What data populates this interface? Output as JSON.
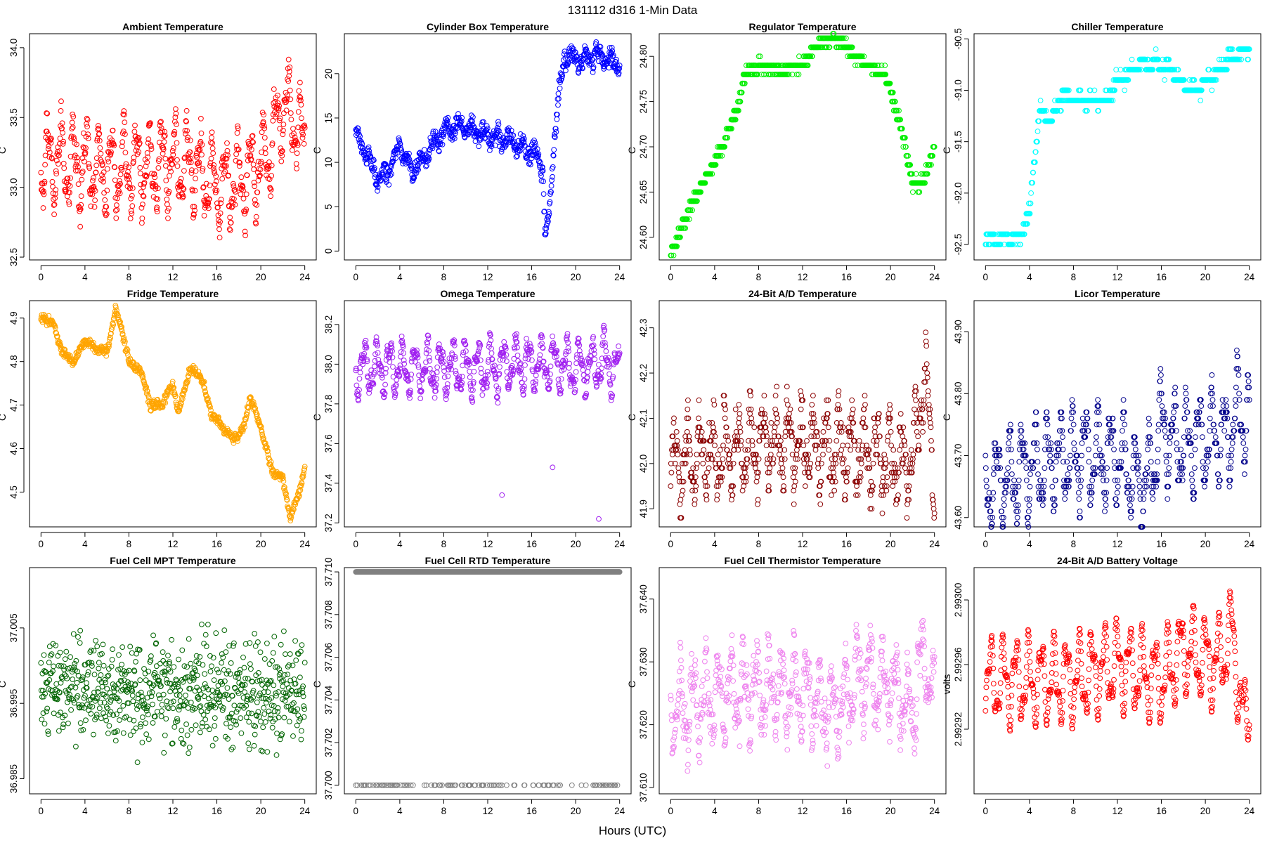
{
  "figure": {
    "title": "131112   d316   1-Min Data",
    "xlabel": "Hours (UTC)"
  },
  "chart_data": [
    {
      "type": "scatter",
      "title": "Ambient Temperature",
      "ylabel": "C",
      "color": "#ff0000",
      "xlim": [
        0,
        24
      ],
      "ylim": [
        32.48,
        34.1
      ],
      "xticks": [
        0,
        4,
        8,
        12,
        16,
        20,
        24
      ],
      "xtick_labels": [
        "0",
        "4",
        "8",
        "12",
        "16",
        "20",
        "24"
      ],
      "yticks": [
        32.5,
        33.0,
        33.5,
        34.0
      ],
      "ytick_labels": [
        "32.5",
        "33.0",
        "33.5",
        "34.0"
      ],
      "trend": [
        [
          0,
          33.18
        ],
        [
          2,
          33.18
        ],
        [
          4,
          33.15
        ],
        [
          6,
          33.12
        ],
        [
          8,
          33.15
        ],
        [
          10,
          33.15
        ],
        [
          12,
          33.2
        ],
        [
          14,
          33.15
        ],
        [
          16,
          33.0
        ],
        [
          18,
          33.05
        ],
        [
          20,
          33.15
        ],
        [
          21,
          33.3
        ],
        [
          22,
          33.6
        ],
        [
          23,
          33.5
        ],
        [
          24,
          33.3
        ]
      ],
      "amp": 0.32,
      "noise": 0.06
    },
    {
      "type": "scatter",
      "title": "Cylinder Box Temperature",
      "ylabel": "C",
      "color": "#0000ff",
      "xlim": [
        0,
        24
      ],
      "ylim": [
        -1,
        24.5
      ],
      "xticks": [
        0,
        4,
        8,
        12,
        16,
        20,
        24
      ],
      "xtick_labels": [
        "0",
        "4",
        "8",
        "12",
        "16",
        "20",
        "24"
      ],
      "yticks": [
        0,
        5,
        10,
        15,
        20
      ],
      "ytick_labels": [
        "0",
        "5",
        "10",
        "15",
        "20"
      ],
      "trend": [
        [
          0,
          13
        ],
        [
          1,
          11
        ],
        [
          2,
          8
        ],
        [
          3,
          9
        ],
        [
          4,
          12
        ],
        [
          5,
          9
        ],
        [
          6,
          10
        ],
        [
          7,
          12
        ],
        [
          8,
          13.5
        ],
        [
          9,
          14
        ],
        [
          10,
          14
        ],
        [
          11,
          13.5
        ],
        [
          12,
          13
        ],
        [
          14,
          12.5
        ],
        [
          16,
          11
        ],
        [
          17,
          10
        ],
        [
          17.2,
          1.5
        ],
        [
          17.6,
          4
        ],
        [
          18,
          12
        ],
        [
          18.5,
          18
        ],
        [
          19,
          22
        ],
        [
          20,
          21.5
        ],
        [
          22,
          22
        ],
        [
          24,
          21.2
        ]
      ],
      "amp": 0.9,
      "noise": 0.6
    },
    {
      "type": "scatter",
      "title": "Regulator Temperature",
      "ylabel": "C",
      "color": "#00ee00",
      "xlim": [
        0,
        24
      ],
      "ylim": [
        24.575,
        24.825
      ],
      "xticks": [
        0,
        4,
        8,
        12,
        16,
        20,
        24
      ],
      "xtick_labels": [
        "0",
        "4",
        "8",
        "12",
        "16",
        "20",
        "24"
      ],
      "yticks": [
        24.6,
        24.65,
        24.7,
        24.75,
        24.8
      ],
      "ytick_labels": [
        "24.60",
        "24.65",
        "24.70",
        "24.75",
        "24.80"
      ],
      "trend": [
        [
          0,
          24.58
        ],
        [
          1,
          24.61
        ],
        [
          2,
          24.64
        ],
        [
          3,
          24.66
        ],
        [
          4,
          24.68
        ],
        [
          5,
          24.71
        ],
        [
          6,
          24.74
        ],
        [
          6.8,
          24.78
        ],
        [
          8,
          24.79
        ],
        [
          10,
          24.785
        ],
        [
          12,
          24.79
        ],
        [
          13.5,
          24.815
        ],
        [
          15,
          24.82
        ],
        [
          16,
          24.81
        ],
        [
          18,
          24.79
        ],
        [
          19.5,
          24.78
        ],
        [
          20,
          24.76
        ],
        [
          21,
          24.72
        ],
        [
          22,
          24.66
        ],
        [
          23,
          24.66
        ],
        [
          24,
          24.7
        ]
      ],
      "amp": 0.0,
      "noise": 0.004,
      "step": 0.01
    },
    {
      "type": "scatter",
      "title": "Chiller Temperature",
      "ylabel": "C",
      "color": "#00ffff",
      "xlim": [
        0,
        24
      ],
      "ylim": [
        -92.65,
        -90.45
      ],
      "xticks": [
        0,
        4,
        8,
        12,
        16,
        20,
        24
      ],
      "xtick_labels": [
        "0",
        "4",
        "8",
        "12",
        "16",
        "20",
        "24"
      ],
      "yticks": [
        -92.5,
        -92.0,
        -91.5,
        -91.0,
        -90.5
      ],
      "ytick_labels": [
        "-92.5",
        "-92.0",
        "-91.5",
        "-91.0",
        "-90.5"
      ],
      "trend": [
        [
          0,
          -92.45
        ],
        [
          2,
          -92.45
        ],
        [
          3,
          -92.45
        ],
        [
          4,
          -92.2
        ],
        [
          4.5,
          -91.6
        ],
        [
          5,
          -91.2
        ],
        [
          6,
          -91.3
        ],
        [
          7,
          -91.05
        ],
        [
          9,
          -91.1
        ],
        [
          11,
          -91.1
        ],
        [
          12,
          -90.9
        ],
        [
          13,
          -90.85
        ],
        [
          14,
          -90.75
        ],
        [
          16,
          -90.75
        ],
        [
          17,
          -90.8
        ],
        [
          18,
          -90.95
        ],
        [
          19,
          -91.0
        ],
        [
          20,
          -90.9
        ],
        [
          21,
          -90.85
        ],
        [
          22,
          -90.7
        ],
        [
          24,
          -90.6
        ]
      ],
      "amp": 0.05,
      "noise": 0.03,
      "step": 0.1
    },
    {
      "type": "scatter",
      "title": "Fridge Temperature",
      "ylabel": "C",
      "color": "#ffa500",
      "xlim": [
        0,
        24
      ],
      "ylim": [
        4.42,
        4.94
      ],
      "xticks": [
        0,
        4,
        8,
        12,
        16,
        20,
        24
      ],
      "xtick_labels": [
        "0",
        "4",
        "8",
        "12",
        "16",
        "20",
        "24"
      ],
      "yticks": [
        4.5,
        4.6,
        4.7,
        4.8,
        4.9
      ],
      "ytick_labels": [
        "4.5",
        "4.6",
        "4.7",
        "4.8",
        "4.9"
      ],
      "trend": [
        [
          0,
          4.9
        ],
        [
          1,
          4.89
        ],
        [
          2,
          4.82
        ],
        [
          3,
          4.8
        ],
        [
          4,
          4.85
        ],
        [
          5,
          4.83
        ],
        [
          6,
          4.82
        ],
        [
          6.8,
          4.92
        ],
        [
          7.5,
          4.86
        ],
        [
          8,
          4.8
        ],
        [
          9,
          4.78
        ],
        [
          10,
          4.7
        ],
        [
          11,
          4.7
        ],
        [
          12,
          4.75
        ],
        [
          12.5,
          4.68
        ],
        [
          13.5,
          4.78
        ],
        [
          14.5,
          4.77
        ],
        [
          15.5,
          4.68
        ],
        [
          16.5,
          4.65
        ],
        [
          17.5,
          4.62
        ],
        [
          18.5,
          4.65
        ],
        [
          19,
          4.72
        ],
        [
          20,
          4.65
        ],
        [
          21,
          4.55
        ],
        [
          22,
          4.53
        ],
        [
          22.7,
          4.44
        ],
        [
          23.5,
          4.5
        ],
        [
          24,
          4.56
        ]
      ],
      "amp": 0.004,
      "noise": 0.006
    },
    {
      "type": "scatter",
      "title": "Omega Temperature",
      "ylabel": "C",
      "color": "#a020f0",
      "xlim": [
        0,
        24
      ],
      "ylim": [
        37.18,
        38.32
      ],
      "xticks": [
        0,
        4,
        8,
        12,
        16,
        20,
        24
      ],
      "xtick_labels": [
        "0",
        "4",
        "8",
        "12",
        "16",
        "20",
        "24"
      ],
      "yticks": [
        37.2,
        37.4,
        37.6,
        37.8,
        38.0,
        38.2
      ],
      "ytick_labels": [
        "37.2",
        "37.4",
        "37.6",
        "37.8",
        "38.0",
        "38.2"
      ],
      "trend": [
        [
          0,
          37.98
        ],
        [
          12,
          37.98
        ],
        [
          14,
          38.0
        ],
        [
          17,
          38.0
        ],
        [
          21,
          37.98
        ],
        [
          22.5,
          38.02
        ],
        [
          24,
          37.95
        ]
      ],
      "amp": 0.14,
      "noise": 0.02,
      "outliers": [
        [
          13.3,
          37.34
        ],
        [
          17.9,
          37.48
        ],
        [
          22.1,
          37.22
        ]
      ]
    },
    {
      "type": "scatter",
      "title": "24-Bit A/D Temperature",
      "ylabel": "C",
      "color": "#8b0000",
      "xlim": [
        0,
        24
      ],
      "ylim": [
        41.86,
        42.36
      ],
      "xticks": [
        0,
        4,
        8,
        12,
        16,
        20,
        24
      ],
      "xtick_labels": [
        "0",
        "4",
        "8",
        "12",
        "16",
        "20",
        "24"
      ],
      "yticks": [
        41.9,
        42.0,
        42.1,
        42.2,
        42.3
      ],
      "ytick_labels": [
        "41.9",
        "42.0",
        "42.1",
        "42.2",
        "42.3"
      ],
      "trend": [
        [
          0,
          42.0
        ],
        [
          4,
          42.02
        ],
        [
          8,
          42.04
        ],
        [
          12,
          42.04
        ],
        [
          16,
          42.03
        ],
        [
          20,
          42.01
        ],
        [
          22,
          42.0
        ],
        [
          23,
          42.2
        ],
        [
          24,
          42.0
        ]
      ],
      "amp": 0.09,
      "noise": 0.03,
      "step": 0.01
    },
    {
      "type": "scatter",
      "title": "Licor Temperature",
      "ylabel": "C",
      "color": "#00008b",
      "xlim": [
        0,
        24
      ],
      "ylim": [
        43.585,
        43.95
      ],
      "xticks": [
        0,
        4,
        8,
        12,
        16,
        20,
        24
      ],
      "xtick_labels": [
        "0",
        "4",
        "8",
        "12",
        "16",
        "20",
        "24"
      ],
      "yticks": [
        43.6,
        43.7,
        43.8,
        43.9
      ],
      "ytick_labels": [
        "43.60",
        "43.70",
        "43.80",
        "43.90"
      ],
      "trend": [
        [
          0,
          43.65
        ],
        [
          4,
          43.68
        ],
        [
          8,
          43.7
        ],
        [
          12,
          43.7
        ],
        [
          14,
          43.65
        ],
        [
          15,
          43.67
        ],
        [
          16,
          43.75
        ],
        [
          17,
          43.72
        ],
        [
          19,
          43.72
        ],
        [
          21,
          43.73
        ],
        [
          22,
          43.72
        ],
        [
          23,
          43.78
        ],
        [
          24,
          43.75
        ]
      ],
      "amp": 0.08,
      "noise": 0.01,
      "step": 0.01
    },
    {
      "type": "scatter",
      "title": "Fuel Cell MPT Temperature",
      "ylabel": "C",
      "color": "#006400",
      "xlim": [
        0,
        24
      ],
      "ylim": [
        36.983,
        37.013
      ],
      "xticks": [
        0,
        4,
        8,
        12,
        16,
        20,
        24
      ],
      "xtick_labels": [
        "0",
        "4",
        "8",
        "12",
        "16",
        "20",
        "24"
      ],
      "yticks": [
        36.985,
        36.995,
        37.005
      ],
      "ytick_labels": [
        "36.985",
        "36.995",
        "37.005"
      ],
      "trend": [
        [
          0,
          36.997
        ],
        [
          24,
          36.996
        ]
      ],
      "amp": 0.0,
      "noise": 0.0042
    },
    {
      "type": "scatter",
      "title": "Fuel Cell RTD Temperature",
      "ylabel": "C",
      "color": "#808080",
      "xlim": [
        0,
        24
      ],
      "ylim": [
        37.6996,
        37.7102
      ],
      "xticks": [
        0,
        4,
        8,
        12,
        16,
        20,
        24
      ],
      "xtick_labels": [
        "0",
        "4",
        "8",
        "12",
        "16",
        "20",
        "24"
      ],
      "yticks": [
        37.7,
        37.702,
        37.704,
        37.706,
        37.708,
        37.71
      ],
      "ytick_labels": [
        "37.700",
        "37.702",
        "37.704",
        "37.706",
        "37.708",
        "37.710"
      ],
      "levels": [
        37.7,
        37.71
      ],
      "low_fraction": 0.18
    },
    {
      "type": "scatter",
      "title": "Fuel Cell Thermistor Temperature",
      "ylabel": "C",
      "color": "#ee82ee",
      "xlim": [
        0,
        24
      ],
      "ylim": [
        37.609,
        37.645
      ],
      "xticks": [
        0,
        4,
        8,
        12,
        16,
        20,
        24
      ],
      "xtick_labels": [
        "0",
        "4",
        "8",
        "12",
        "16",
        "20",
        "24"
      ],
      "yticks": [
        37.61,
        37.62,
        37.63,
        37.64
      ],
      "ytick_labels": [
        "37.610",
        "37.620",
        "37.630",
        "37.640"
      ],
      "trend": [
        [
          0,
          37.622
        ],
        [
          4,
          37.624
        ],
        [
          8,
          37.626
        ],
        [
          12,
          37.625
        ],
        [
          15,
          37.622
        ],
        [
          17,
          37.628
        ],
        [
          20,
          37.626
        ],
        [
          22,
          37.622
        ],
        [
          23,
          37.632
        ],
        [
          24,
          37.622
        ]
      ],
      "amp": 0.007,
      "noise": 0.002
    },
    {
      "type": "scatter",
      "title": "24-Bit A/D Battery Voltage",
      "ylabel": "volts",
      "color": "#ff0000",
      "xlim": [
        0,
        24
      ],
      "ylim": [
        2.99288,
        2.99302
      ],
      "xticks": [
        0,
        4,
        8,
        12,
        16,
        20,
        24
      ],
      "xtick_labels": [
        "0",
        "4",
        "8",
        "12",
        "16",
        "20",
        "24"
      ],
      "yticks": [
        2.99292,
        2.99296,
        2.993
      ],
      "ytick_labels": [
        "2.99292",
        "2.99296",
        "2.99300"
      ],
      "trend": [
        [
          0,
          2.99295
        ],
        [
          8,
          2.99295
        ],
        [
          12,
          2.99296
        ],
        [
          16,
          2.99295
        ],
        [
          18,
          2.99297
        ],
        [
          21,
          2.99296
        ],
        [
          22.5,
          2.99298
        ],
        [
          23.5,
          2.99292
        ],
        [
          24,
          2.99294
        ]
      ],
      "amp": 2.8e-05,
      "noise": 8e-07
    }
  ]
}
